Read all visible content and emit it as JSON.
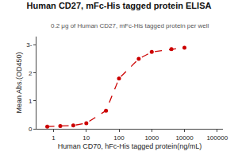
{
  "chart_data": {
    "type": "line",
    "title": "Human CD27, mFc-His tagged protein ELISA",
    "subtitle": "0.2 μg of Human CD27, mFc-His tagged protein per well",
    "xlabel": "Human CD70, hFc-His tagged protein(ng/mL)",
    "ylabel": "Mean Abs.(OD450)",
    "x": [
      0.64,
      1.6,
      4,
      10,
      40,
      100,
      400,
      1000,
      4000,
      10000
    ],
    "values": [
      0.08,
      0.1,
      0.12,
      0.2,
      0.65,
      1.8,
      2.5,
      2.75,
      2.85,
      2.9
    ],
    "color": "#cc0000",
    "marker": "circle",
    "line_style": "dashed",
    "log": "x",
    "xlim": [
      0.3,
      150000
    ],
    "xticks": [
      1,
      10,
      100,
      1000,
      10000,
      100000
    ],
    "ylim": [
      0,
      3.3
    ],
    "yticks": [
      0,
      1,
      2,
      {
        "value": 3,
        "label": "3-"
      }
    ],
    "grid": false
  }
}
